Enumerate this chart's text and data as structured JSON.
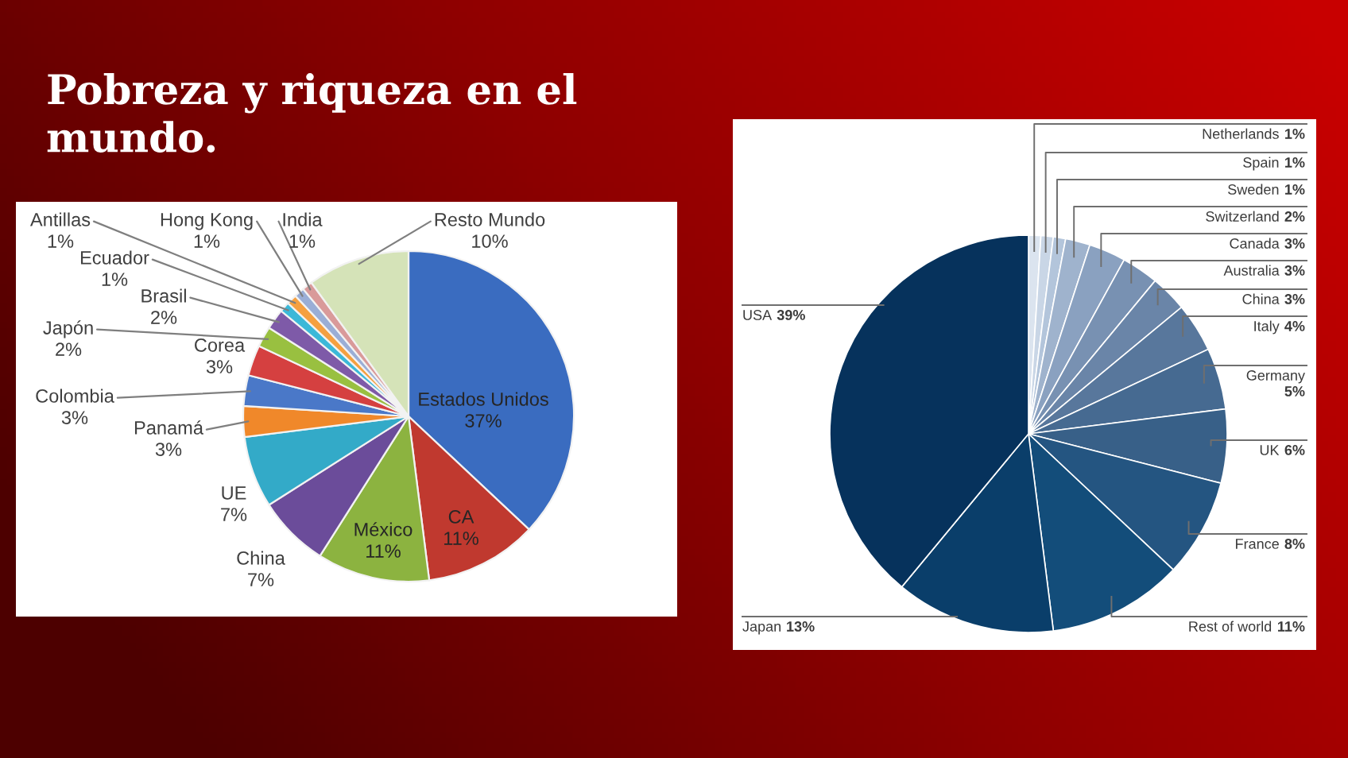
{
  "chart_data": [
    {
      "type": "pie",
      "title": "Pobreza y riqueza en el mundo.",
      "categories": [
        "Estados Unidos",
        "CA",
        "México",
        "China",
        "UE",
        "Panamá",
        "Colombia",
        "Corea",
        "Japón",
        "Brasil",
        "Ecuador",
        "Antillas",
        "Hong Kong",
        "India",
        "Resto Mundo"
      ],
      "values": [
        37,
        11,
        11,
        7,
        7,
        3,
        3,
        3,
        2,
        2,
        1,
        1,
        1,
        1,
        10
      ],
      "value_labels": [
        "37%",
        "11%",
        "11%",
        "7%",
        "7%",
        "3%",
        "3%",
        "3%",
        "2%",
        "2%",
        "1%",
        "1%",
        "1%",
        "1%",
        "10%"
      ],
      "colors": [
        "#3a6cc0",
        "#c0392f",
        "#8cb340",
        "#6b4c9a",
        "#33aac8",
        "#f0882a",
        "#4a78c8",
        "#d54040",
        "#99c040",
        "#7e5aa8",
        "#3bb8d8",
        "#f5a040",
        "#9aaed6",
        "#d99a9a",
        "#d5e3b8"
      ]
    },
    {
      "type": "pie",
      "categories": [
        "Netherlands",
        "Spain",
        "Sweden",
        "Switzerland",
        "Canada",
        "Australia",
        "China",
        "Italy",
        "Germany",
        "UK",
        "France",
        "Rest of world",
        "Japan",
        "USA"
      ],
      "values": [
        1,
        1,
        1,
        2,
        3,
        3,
        3,
        4,
        5,
        6,
        8,
        11,
        13,
        39
      ],
      "value_labels": [
        "1%",
        "1%",
        "1%",
        "2%",
        "3%",
        "3%",
        "3%",
        "4%",
        "5%",
        "6%",
        "8%",
        "11%",
        "13%",
        "39%"
      ],
      "colors": [
        "#dbe4ef",
        "#c9d6e6",
        "#b3c5db",
        "#9fb3cd",
        "#8aa1c0",
        "#7891b2",
        "#6a85a8",
        "#58779c",
        "#466a91",
        "#386088",
        "#245581",
        "#134d7a",
        "#0a3e6a",
        "#06325c"
      ]
    }
  ]
}
